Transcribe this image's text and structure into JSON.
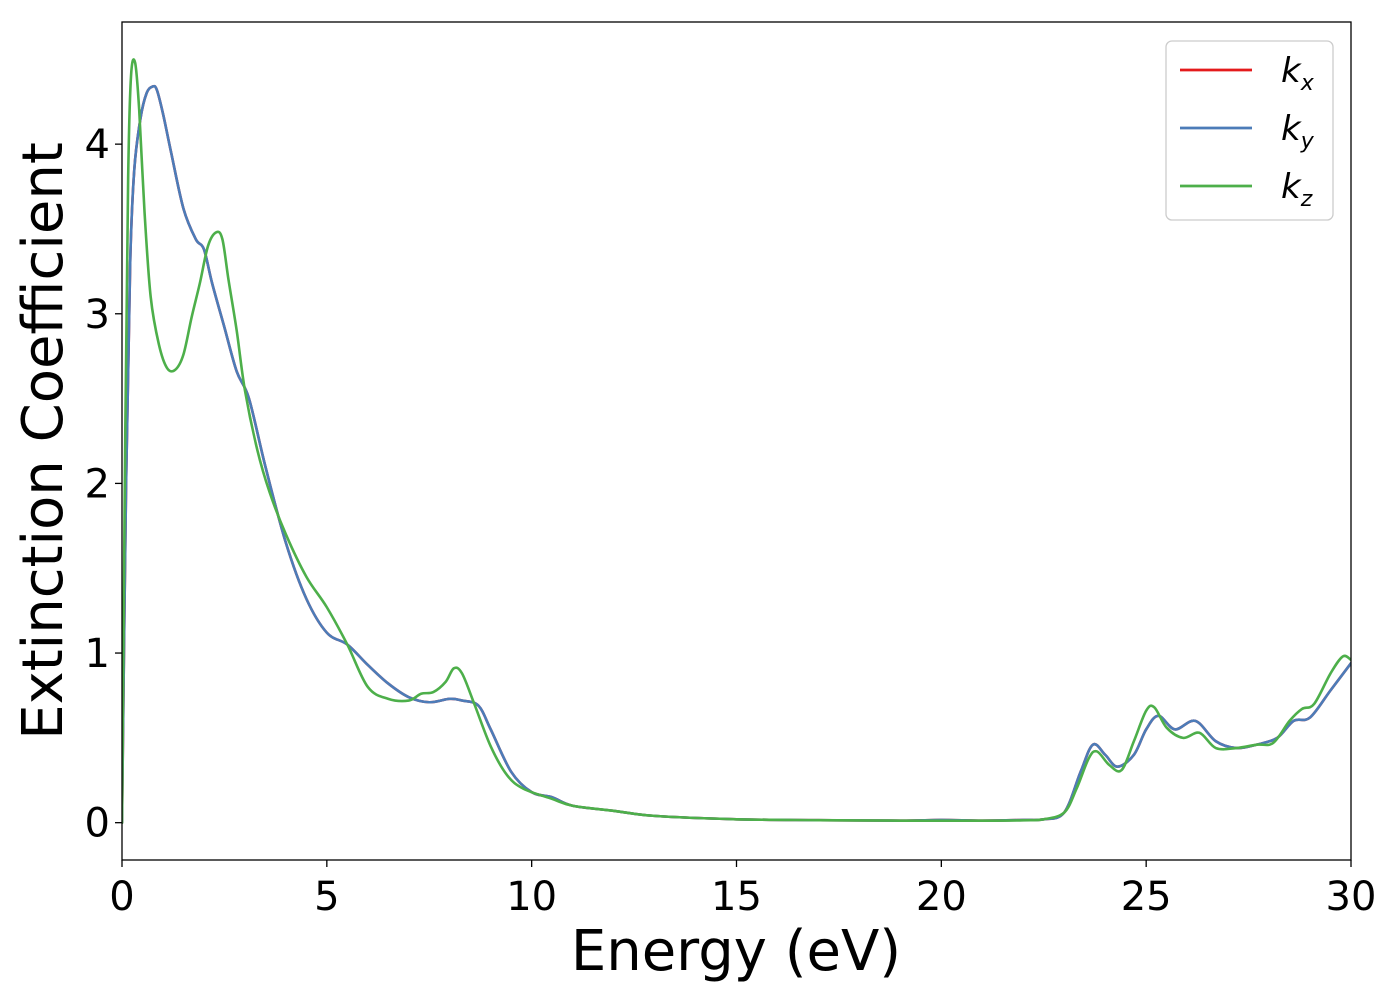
{
  "chart_data": {
    "type": "line",
    "xlabel": "Energy (eV)",
    "ylabel": "Extinction Coefficient",
    "xlim": [
      0,
      30
    ],
    "ylim": [
      -0.22,
      4.72
    ],
    "xticks": [
      0,
      5,
      10,
      15,
      20,
      25,
      30
    ],
    "yticks": [
      0,
      1,
      2,
      3,
      4
    ],
    "grid": false,
    "legend_position": "top-right",
    "series": [
      {
        "name": "k",
        "subscript": "x",
        "color": "#e41a1c",
        "x": [
          0,
          0.1,
          0.2,
          0.3,
          0.45,
          0.6,
          0.75,
          0.85,
          1.0,
          1.2,
          1.5,
          1.8,
          2.0,
          2.2,
          2.5,
          2.8,
          3.1,
          3.5,
          4.0,
          4.5,
          5.0,
          5.5,
          6.0,
          6.5,
          7.0,
          7.5,
          8.0,
          8.3,
          8.7,
          9.0,
          9.5,
          10.0,
          10.5,
          11.0,
          12.0,
          13.0,
          15.0,
          17.0,
          19.0,
          20.0,
          21.0,
          22.0,
          22.5,
          23.0,
          23.4,
          23.7,
          24.0,
          24.3,
          24.7,
          25.0,
          25.3,
          25.7,
          26.2,
          26.7,
          27.2,
          27.7,
          28.2,
          28.6,
          29.0,
          29.5,
          30.0
        ],
        "values": [
          0,
          2.0,
          3.3,
          3.85,
          4.15,
          4.3,
          4.34,
          4.32,
          4.18,
          3.95,
          3.62,
          3.44,
          3.38,
          3.18,
          2.92,
          2.66,
          2.5,
          2.1,
          1.65,
          1.32,
          1.12,
          1.05,
          0.93,
          0.82,
          0.74,
          0.71,
          0.73,
          0.72,
          0.69,
          0.55,
          0.3,
          0.18,
          0.15,
          0.1,
          0.07,
          0.04,
          0.02,
          0.015,
          0.012,
          0.016,
          0.012,
          0.016,
          0.02,
          0.06,
          0.3,
          0.46,
          0.4,
          0.33,
          0.4,
          0.55,
          0.63,
          0.55,
          0.6,
          0.48,
          0.44,
          0.46,
          0.5,
          0.6,
          0.62,
          0.78,
          0.94
        ]
      },
      {
        "name": "k",
        "subscript": "y",
        "color": "#4c7cb8",
        "x": [
          0,
          0.1,
          0.2,
          0.3,
          0.45,
          0.6,
          0.75,
          0.85,
          1.0,
          1.2,
          1.5,
          1.8,
          2.0,
          2.2,
          2.5,
          2.8,
          3.1,
          3.5,
          4.0,
          4.5,
          5.0,
          5.5,
          6.0,
          6.5,
          7.0,
          7.5,
          8.0,
          8.3,
          8.7,
          9.0,
          9.5,
          10.0,
          10.5,
          11.0,
          12.0,
          13.0,
          15.0,
          17.0,
          19.0,
          20.0,
          21.0,
          22.0,
          22.5,
          23.0,
          23.4,
          23.7,
          24.0,
          24.3,
          24.7,
          25.0,
          25.3,
          25.7,
          26.2,
          26.7,
          27.2,
          27.7,
          28.2,
          28.6,
          29.0,
          29.5,
          30.0
        ],
        "values": [
          0,
          2.0,
          3.3,
          3.85,
          4.15,
          4.3,
          4.34,
          4.32,
          4.18,
          3.95,
          3.62,
          3.44,
          3.38,
          3.18,
          2.92,
          2.66,
          2.5,
          2.1,
          1.65,
          1.32,
          1.12,
          1.05,
          0.93,
          0.82,
          0.74,
          0.71,
          0.73,
          0.72,
          0.69,
          0.55,
          0.3,
          0.18,
          0.15,
          0.1,
          0.07,
          0.04,
          0.02,
          0.015,
          0.012,
          0.016,
          0.012,
          0.016,
          0.02,
          0.06,
          0.3,
          0.46,
          0.4,
          0.33,
          0.4,
          0.55,
          0.63,
          0.55,
          0.6,
          0.48,
          0.44,
          0.46,
          0.5,
          0.6,
          0.62,
          0.78,
          0.94
        ]
      },
      {
        "name": "k",
        "subscript": "z",
        "color": "#4daf4a",
        "x": [
          0,
          0.08,
          0.15,
          0.22,
          0.32,
          0.42,
          0.55,
          0.7,
          0.9,
          1.1,
          1.3,
          1.5,
          1.7,
          1.9,
          2.1,
          2.3,
          2.45,
          2.6,
          2.8,
          3.0,
          3.3,
          3.6,
          4.0,
          4.5,
          5.0,
          5.5,
          6.0,
          6.5,
          7.0,
          7.3,
          7.6,
          7.9,
          8.1,
          8.3,
          8.6,
          9.0,
          9.4,
          9.8,
          10.5,
          11.0,
          12.0,
          13.0,
          15.0,
          17.0,
          19.0,
          21.0,
          22.0,
          22.5,
          23.0,
          23.3,
          23.6,
          23.8,
          24.1,
          24.4,
          24.7,
          25.0,
          25.2,
          25.5,
          25.9,
          26.3,
          26.7,
          27.2,
          27.7,
          28.1,
          28.5,
          28.8,
          29.1,
          29.5,
          29.8,
          30.0
        ],
        "values": [
          0,
          2.3,
          3.8,
          4.4,
          4.48,
          4.2,
          3.6,
          3.1,
          2.82,
          2.68,
          2.67,
          2.76,
          2.98,
          3.18,
          3.4,
          3.48,
          3.44,
          3.2,
          2.9,
          2.55,
          2.2,
          1.95,
          1.7,
          1.45,
          1.27,
          1.05,
          0.8,
          0.73,
          0.72,
          0.76,
          0.77,
          0.83,
          0.91,
          0.88,
          0.7,
          0.45,
          0.28,
          0.2,
          0.14,
          0.1,
          0.07,
          0.04,
          0.02,
          0.015,
          0.012,
          0.012,
          0.014,
          0.02,
          0.06,
          0.2,
          0.38,
          0.42,
          0.34,
          0.31,
          0.48,
          0.66,
          0.68,
          0.56,
          0.5,
          0.53,
          0.44,
          0.44,
          0.46,
          0.47,
          0.6,
          0.67,
          0.7,
          0.88,
          0.98,
          0.96
        ]
      }
    ]
  }
}
